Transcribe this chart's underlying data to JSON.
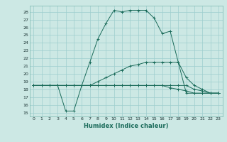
{
  "xlabel": "Humidex (Indice chaleur)",
  "bg_color": "#cce8e4",
  "grid_color": "#9ecece",
  "line_color": "#1a6b5a",
  "xlim": [
    -0.5,
    23.5
  ],
  "ylim": [
    14.5,
    28.8
  ],
  "yticks": [
    15,
    16,
    17,
    18,
    19,
    20,
    21,
    22,
    23,
    24,
    25,
    26,
    27,
    28
  ],
  "xticks": [
    0,
    1,
    2,
    3,
    4,
    5,
    6,
    7,
    8,
    9,
    10,
    11,
    12,
    13,
    14,
    15,
    16,
    17,
    18,
    19,
    20,
    21,
    22,
    23
  ],
  "xtick_labels": [
    "0",
    "1",
    "2",
    "3",
    "4",
    "5",
    "6",
    "7",
    "8",
    "9",
    "10",
    "11",
    "12",
    "13",
    "14",
    "15",
    "16",
    "17",
    "18",
    "19",
    "20",
    "21",
    "22",
    "23"
  ],
  "lines": [
    {
      "x": [
        0,
        1,
        2,
        3,
        4,
        5,
        6,
        7,
        8,
        9,
        10,
        11,
        12,
        13,
        14,
        15,
        16,
        17,
        18,
        19,
        20,
        21,
        22,
        23
      ],
      "y": [
        18.5,
        18.5,
        18.5,
        18.5,
        15.2,
        15.2,
        18.5,
        21.5,
        24.5,
        26.5,
        28.2,
        28.0,
        28.2,
        28.2,
        28.2,
        27.2,
        25.2,
        25.5,
        21.5,
        17.5,
        17.5,
        17.5,
        17.5,
        17.5
      ]
    },
    {
      "x": [
        0,
        1,
        2,
        3,
        4,
        5,
        6,
        7,
        8,
        9,
        10,
        11,
        12,
        13,
        14,
        15,
        16,
        17,
        18,
        19,
        20,
        21,
        22,
        23
      ],
      "y": [
        18.5,
        18.5,
        18.5,
        18.5,
        18.5,
        18.5,
        18.5,
        18.5,
        19.0,
        19.5,
        20.0,
        20.5,
        21.0,
        21.2,
        21.5,
        21.5,
        21.5,
        21.5,
        21.5,
        19.5,
        18.5,
        18.0,
        17.5,
        17.5
      ]
    },
    {
      "x": [
        0,
        1,
        2,
        3,
        4,
        5,
        6,
        7,
        8,
        9,
        10,
        11,
        12,
        13,
        14,
        15,
        16,
        17,
        18,
        19,
        20,
        21,
        22,
        23
      ],
      "y": [
        18.5,
        18.5,
        18.5,
        18.5,
        18.5,
        18.5,
        18.5,
        18.5,
        18.5,
        18.5,
        18.5,
        18.5,
        18.5,
        18.5,
        18.5,
        18.5,
        18.5,
        18.5,
        18.5,
        18.5,
        18.0,
        17.8,
        17.5,
        17.5
      ]
    },
    {
      "x": [
        0,
        1,
        2,
        3,
        4,
        5,
        6,
        7,
        8,
        9,
        10,
        11,
        12,
        13,
        14,
        15,
        16,
        17,
        18,
        19,
        20,
        21,
        22,
        23
      ],
      "y": [
        18.5,
        18.5,
        18.5,
        18.5,
        18.5,
        18.5,
        18.5,
        18.5,
        18.5,
        18.5,
        18.5,
        18.5,
        18.5,
        18.5,
        18.5,
        18.5,
        18.5,
        18.2,
        18.0,
        17.8,
        17.5,
        17.5,
        17.5,
        17.5
      ]
    }
  ]
}
